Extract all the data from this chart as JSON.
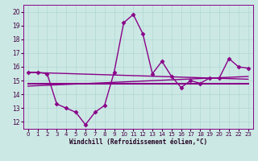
{
  "background_color": "#cce8e4",
  "grid_color": "#b0d8d4",
  "line_color": "#880088",
  "title": "Windchill (Refroidissement éolien,°C)",
  "xlim": [
    -0.5,
    23.5
  ],
  "ylim": [
    11.5,
    20.5
  ],
  "yticks": [
    12,
    13,
    14,
    15,
    16,
    17,
    18,
    19,
    20
  ],
  "xticks": [
    0,
    1,
    2,
    3,
    4,
    5,
    6,
    7,
    8,
    9,
    10,
    11,
    12,
    13,
    14,
    15,
    16,
    17,
    18,
    19,
    20,
    21,
    22,
    23
  ],
  "series": [
    {
      "x": [
        0,
        1,
        2,
        3,
        4,
        5,
        6,
        7,
        8,
        9,
        10,
        11,
        12,
        13,
        14,
        15,
        16,
        17,
        18,
        19,
        20,
        21,
        22,
        23
      ],
      "y": [
        15.6,
        15.6,
        15.5,
        13.3,
        13.0,
        12.7,
        11.8,
        12.7,
        13.2,
        15.6,
        19.2,
        19.8,
        18.4,
        15.5,
        16.4,
        15.3,
        14.5,
        15.0,
        14.8,
        15.2,
        15.2,
        16.6,
        16.0,
        15.9
      ],
      "marker": "D",
      "markersize": 2.5,
      "linewidth": 1.0
    },
    {
      "x": [
        0,
        23
      ],
      "y": [
        14.8,
        14.8
      ],
      "marker": null,
      "markersize": 0,
      "linewidth": 1.5
    },
    {
      "x": [
        0,
        23
      ],
      "y": [
        14.6,
        15.3
      ],
      "marker": null,
      "markersize": 0,
      "linewidth": 1.0
    },
    {
      "x": [
        0,
        23
      ],
      "y": [
        15.6,
        15.1
      ],
      "marker": null,
      "markersize": 0,
      "linewidth": 1.0
    }
  ]
}
